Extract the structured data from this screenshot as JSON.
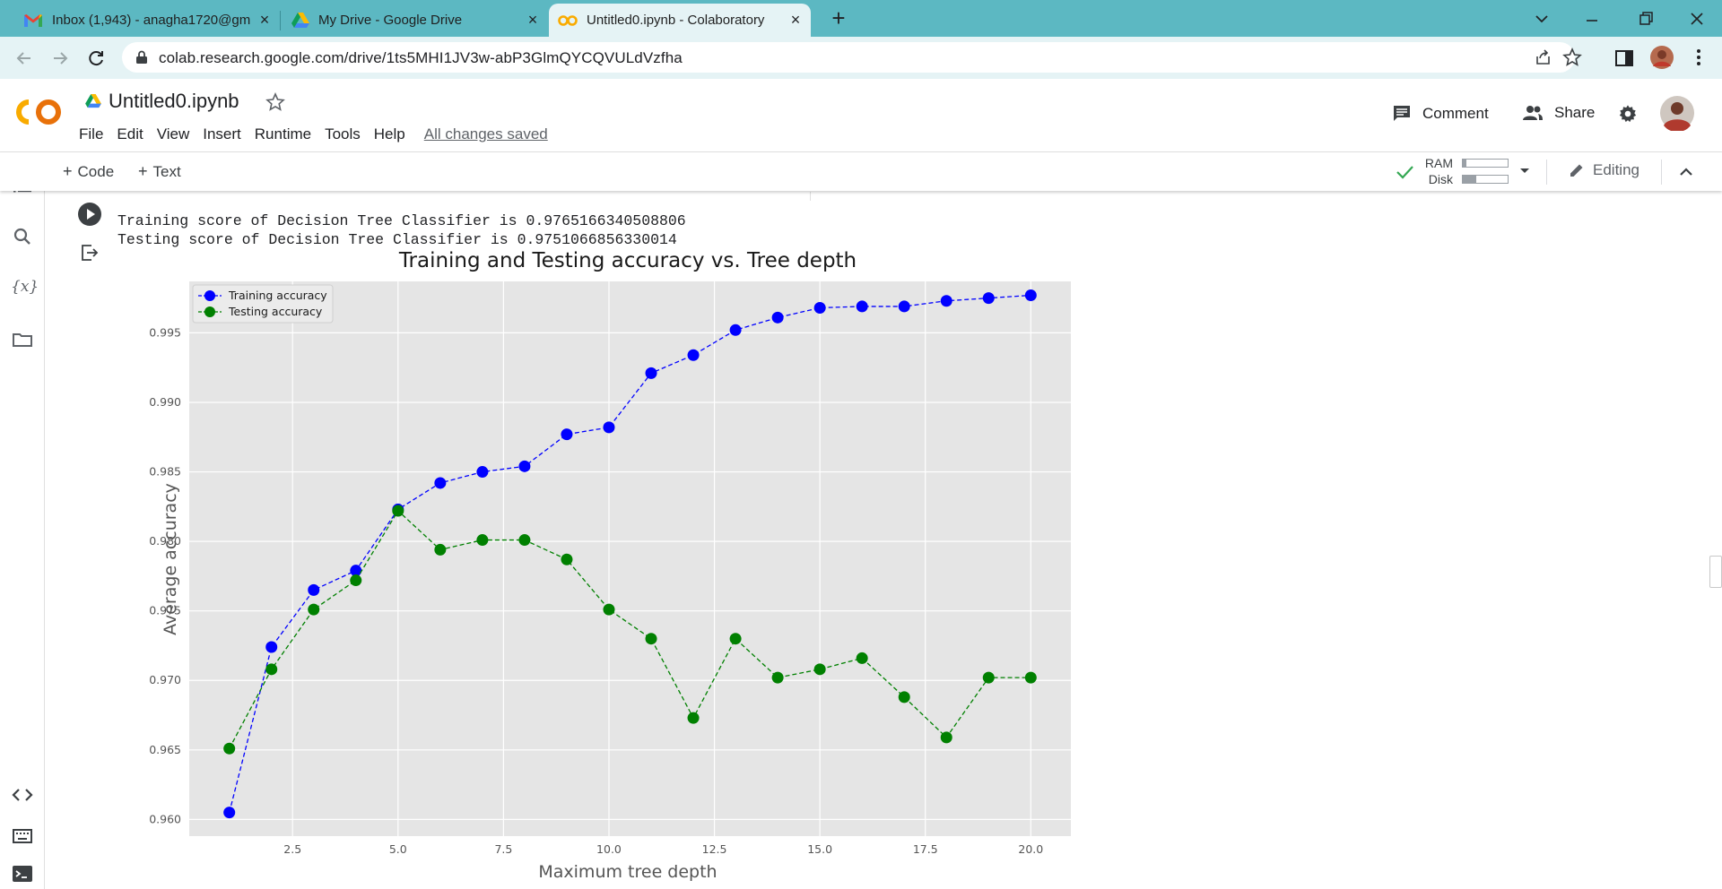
{
  "browser": {
    "tabs": [
      {
        "title": "Inbox (1,943) - anagha1720@gm",
        "icon": "gmail-icon",
        "active": false
      },
      {
        "title": "My Drive - Google Drive",
        "icon": "google-drive-icon",
        "active": false
      },
      {
        "title": "Untitled0.ipynb - Colaboratory",
        "icon": "colab-icon",
        "active": true
      }
    ],
    "url": "colab.research.google.com/drive/1ts5MHI1JV3w-abP3GlmQYCQVULdVzfha"
  },
  "colab": {
    "notebook_title": "Untitled0.ipynb",
    "menu": [
      "File",
      "Edit",
      "View",
      "Insert",
      "Runtime",
      "Tools",
      "Help"
    ],
    "save_status": "All changes saved",
    "comment_label": "Comment",
    "share_label": "Share",
    "toolbar": {
      "code_label": "Code",
      "text_label": "Text",
      "ram_label": "RAM",
      "disk_label": "Disk",
      "ram_usage": 0.08,
      "disk_usage": 0.3,
      "editing_label": "Editing"
    }
  },
  "output": {
    "lines": [
      "Training score of Decision Tree Classifier is 0.9765166340508806",
      "Testing score of Decision Tree Classifier is 0.9751066856330014"
    ]
  },
  "chart_data": {
    "type": "line",
    "title": "Training and Testing accuracy vs. Tree depth",
    "xlabel": "Maximum tree depth",
    "ylabel": "Average accuracy",
    "x": [
      1,
      2,
      3,
      4,
      5,
      6,
      7,
      8,
      9,
      10,
      11,
      12,
      13,
      14,
      15,
      16,
      17,
      18,
      19,
      20
    ],
    "xlim": [
      0.05,
      20.95
    ],
    "ylim": [
      0.9588,
      0.9987
    ],
    "xticks": [
      "2.5",
      "5.0",
      "7.5",
      "10.0",
      "12.5",
      "15.0",
      "17.5",
      "20.0"
    ],
    "yticks": [
      "0.960",
      "0.965",
      "0.970",
      "0.975",
      "0.980",
      "0.985",
      "0.990",
      "0.995"
    ],
    "grid": true,
    "legend_position": "top-left",
    "series": [
      {
        "name": "Training accuracy",
        "color": "#0000ff",
        "values": [
          0.9605,
          0.9724,
          0.9765,
          0.9779,
          0.9823,
          0.9842,
          0.985,
          0.9854,
          0.9877,
          0.9882,
          0.9921,
          0.9934,
          0.9952,
          0.9961,
          0.9968,
          0.9969,
          0.9969,
          0.9973,
          0.9975,
          0.9977
        ]
      },
      {
        "name": "Testing accuracy",
        "color": "#008000",
        "values": [
          0.9651,
          0.9708,
          0.9751,
          0.9772,
          0.9822,
          0.9794,
          0.9801,
          0.9801,
          0.9787,
          0.9751,
          0.973,
          0.9673,
          0.973,
          0.9702,
          0.9708,
          0.9716,
          0.9688,
          0.9659,
          0.9702,
          0.9702
        ]
      }
    ]
  }
}
